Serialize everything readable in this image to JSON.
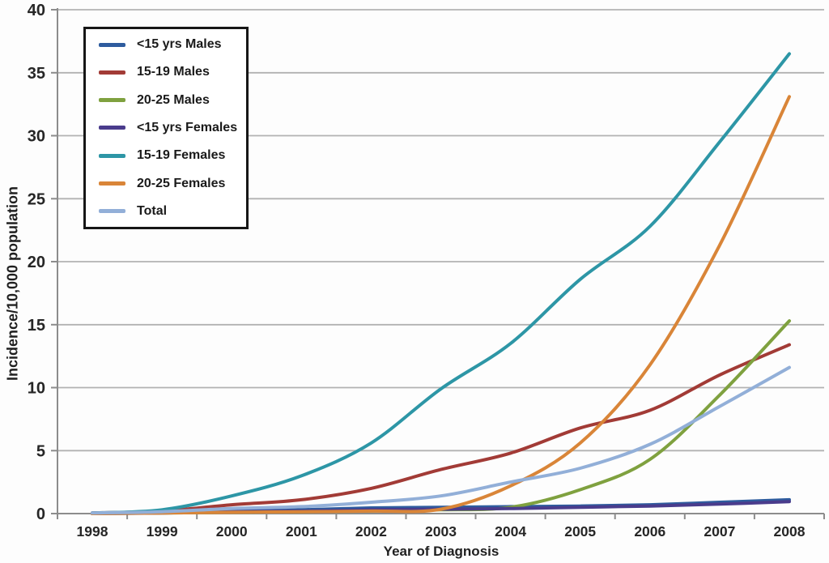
{
  "chart_data": {
    "type": "line",
    "title": "",
    "xlabel": "Year of Diagnosis",
    "ylabel": "Incidence/10,000 population",
    "x": [
      1998,
      1999,
      2000,
      2001,
      2002,
      2003,
      2004,
      2005,
      2006,
      2007,
      2008
    ],
    "ylim": [
      0,
      40
    ],
    "ytick_step": 5,
    "grid": true,
    "legend_position": "top-left",
    "colors": {
      "gridline": "#b2b2b2",
      "axis": "#8c8c8c",
      "tick_text": "#262626"
    },
    "series": [
      {
        "name": "<15 yrs Males",
        "color": "#2e5c9e",
        "values": [
          0.05,
          0.1,
          0.25,
          0.3,
          0.45,
          0.5,
          0.55,
          0.6,
          0.7,
          0.9,
          1.1
        ]
      },
      {
        "name": "15-19 Males",
        "color": "#a23b36",
        "values": [
          0.05,
          0.2,
          0.7,
          1.1,
          2.0,
          3.5,
          4.8,
          6.8,
          8.2,
          11.0,
          13.4
        ]
      },
      {
        "name": "20-25 Males",
        "color": "#7fa13f",
        "values": [
          0.0,
          0.05,
          0.1,
          0.15,
          0.2,
          0.3,
          0.5,
          1.9,
          4.3,
          9.4,
          15.3
        ]
      },
      {
        "name": "<15 yrs Females",
        "color": "#4a3c8c",
        "values": [
          0.0,
          0.05,
          0.15,
          0.2,
          0.3,
          0.35,
          0.4,
          0.5,
          0.6,
          0.75,
          0.95
        ]
      },
      {
        "name": "15-19 Females",
        "color": "#2d96a6",
        "values": [
          0.05,
          0.3,
          1.4,
          3.0,
          5.6,
          9.9,
          13.5,
          18.6,
          22.8,
          29.5,
          36.5
        ]
      },
      {
        "name": "20-25 Females",
        "color": "#d98538",
        "values": [
          0.0,
          0.05,
          0.1,
          0.15,
          0.2,
          0.35,
          2.2,
          5.6,
          11.8,
          21.3,
          33.1
        ]
      },
      {
        "name": "Total",
        "color": "#92afd8",
        "values": [
          0.05,
          0.15,
          0.4,
          0.55,
          0.9,
          1.4,
          2.5,
          3.6,
          5.5,
          8.5,
          11.6
        ]
      }
    ]
  }
}
